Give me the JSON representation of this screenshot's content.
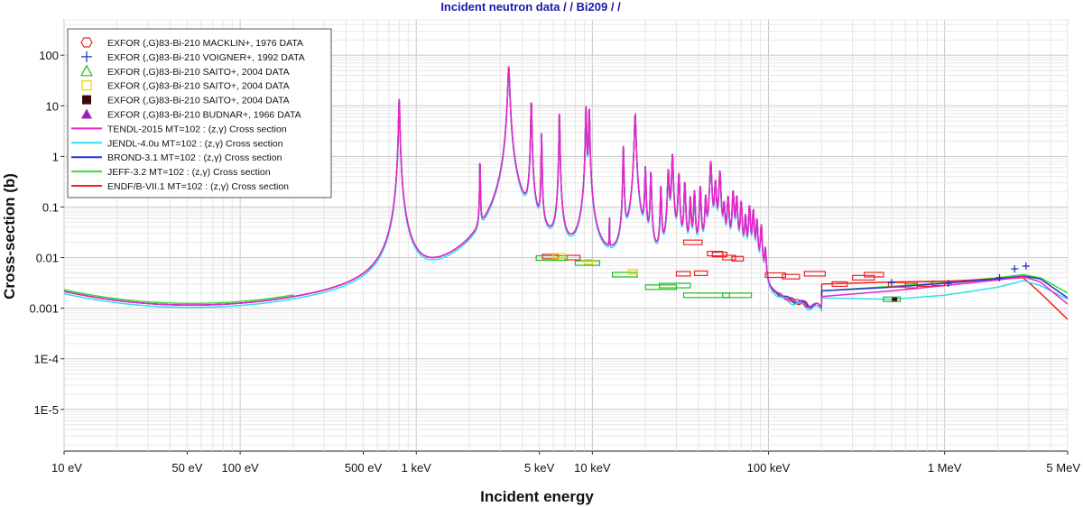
{
  "chart_data": {
    "type": "line",
    "title": "Incident neutron data / / Bi209 / /",
    "xlabel": "Incident energy",
    "ylabel": "Cross-section (b)",
    "x_scale": "log",
    "y_scale": "log",
    "xlim": [
      10,
      5000000
    ],
    "ylim": [
      1.5e-06,
      500
    ],
    "grid": true,
    "legend_position": "top-left",
    "x_ticks": [
      {
        "value": 10,
        "label": "10 eV"
      },
      {
        "value": 50,
        "label": "50 eV"
      },
      {
        "value": 100,
        "label": "100 eV"
      },
      {
        "value": 500,
        "label": "500 eV"
      },
      {
        "value": 1000,
        "label": "1 keV"
      },
      {
        "value": 5000,
        "label": "5 keV"
      },
      {
        "value": 10000,
        "label": "10 keV"
      },
      {
        "value": 100000,
        "label": "100 keV"
      },
      {
        "value": 1000000,
        "label": "1 MeV"
      },
      {
        "value": 5000000,
        "label": "5 MeV"
      }
    ],
    "y_ticks": [
      {
        "value": 1e-05,
        "label": "1E-5"
      },
      {
        "value": 0.0001,
        "label": "1E-4"
      },
      {
        "value": 0.001,
        "label": "0.001"
      },
      {
        "value": 0.01,
        "label": "0.01"
      },
      {
        "value": 0.1,
        "label": "0.1"
      },
      {
        "value": 1,
        "label": "1"
      },
      {
        "value": 10,
        "label": "10"
      },
      {
        "value": 100,
        "label": "100"
      }
    ],
    "legend": [
      {
        "label": "EXFOR (,G)83-Bi-210 MACKLIN+, 1976 DATA",
        "marker": "hexagon",
        "color": "#ee2222"
      },
      {
        "label": "EXFOR (,G)83-Bi-210 VOIGNER+, 1992 DATA",
        "marker": "plus",
        "color": "#2233cc"
      },
      {
        "label": "EXFOR (,G)83-Bi-210 SAITO+, 2004 DATA",
        "marker": "triangle-open",
        "color": "#22bb22"
      },
      {
        "label": "EXFOR (,G)83-Bi-210 SAITO+, 2004 DATA",
        "marker": "square-open",
        "color": "#e8d000"
      },
      {
        "label": "EXFOR (,G)83-Bi-210 SAITO+, 2004 DATA",
        "marker": "square-filled",
        "color": "#3a0a0a"
      },
      {
        "label": "EXFOR (,G)83-Bi-210 BUDNAR+, 1966 DATA",
        "marker": "triangle-filled",
        "color": "#9922bb"
      },
      {
        "label": "TENDL-2015  MT=102 : (z,γ) Cross section",
        "marker": "line",
        "color": "#ee22cc"
      },
      {
        "label": "JENDL-4.0u  MT=102 : (z,γ) Cross section",
        "marker": "line",
        "color": "#33ddee"
      },
      {
        "label": "BROND-3.1  MT=102 : (z,γ) Cross section",
        "marker": "line",
        "color": "#2233dd"
      },
      {
        "label": "JEFF-3.2  MT=102 : (z,γ) Cross section",
        "marker": "line",
        "color": "#33dd33"
      },
      {
        "label": "ENDF/B-VII.1  MT=102 : (z,γ) Cross section",
        "marker": "line",
        "color": "#ee2222"
      }
    ],
    "background": {
      "start": [
        10,
        0.0019
      ],
      "end": [
        200000,
        0.0016
      ],
      "min": [
        180,
        0.00052
      ],
      "threshold_ev": 20000
    },
    "resonances": [
      {
        "e": 800,
        "peak": 14,
        "width": 8
      },
      {
        "e": 2300,
        "peak": 1.2,
        "width": 18
      },
      {
        "e": 3350,
        "peak": 60,
        "width": 5
      },
      {
        "e": 4500,
        "peak": 14,
        "width": 10
      },
      {
        "e": 5150,
        "peak": 3,
        "width": 14
      },
      {
        "e": 6500,
        "peak": 8,
        "width": 12
      },
      {
        "e": 9200,
        "peak": 10,
        "width": 10
      },
      {
        "e": 9600,
        "peak": 10,
        "width": 10
      },
      {
        "e": 12500,
        "peak": 0.05,
        "width": 28
      },
      {
        "e": 15000,
        "peak": 1.6,
        "width": 10
      },
      {
        "e": 17500,
        "peak": 7,
        "width": 6
      },
      {
        "e": 20000,
        "peak": 0.6,
        "width": 8
      },
      {
        "e": 21500,
        "peak": 0.5,
        "width": 8
      },
      {
        "e": 24500,
        "peak": 0.25,
        "width": 8
      },
      {
        "e": 27000,
        "peak": 0.55,
        "width": 6
      },
      {
        "e": 28500,
        "peak": 1.1,
        "width": 6
      },
      {
        "e": 31000,
        "peak": 0.45,
        "width": 6
      },
      {
        "e": 33500,
        "peak": 0.3,
        "width": 6
      },
      {
        "e": 36000,
        "peak": 0.15,
        "width": 6
      },
      {
        "e": 38000,
        "peak": 0.2,
        "width": 6
      },
      {
        "e": 41000,
        "peak": 0.25,
        "width": 6
      },
      {
        "e": 44000,
        "peak": 0.15,
        "width": 6
      },
      {
        "e": 47000,
        "peak": 0.8,
        "width": 5
      },
      {
        "e": 50000,
        "peak": 0.3,
        "width": 5
      },
      {
        "e": 53000,
        "peak": 0.5,
        "width": 5
      },
      {
        "e": 56000,
        "peak": 0.1,
        "width": 5
      },
      {
        "e": 59000,
        "peak": 0.15,
        "width": 5
      },
      {
        "e": 63000,
        "peak": 0.2,
        "width": 5
      },
      {
        "e": 66000,
        "peak": 0.15,
        "width": 5
      },
      {
        "e": 70000,
        "peak": 0.12,
        "width": 5
      },
      {
        "e": 74000,
        "peak": 0.06,
        "width": 5
      },
      {
        "e": 78000,
        "peak": 0.1,
        "width": 5
      },
      {
        "e": 82000,
        "peak": 0.08,
        "width": 5
      },
      {
        "e": 86000,
        "peak": 0.05,
        "width": 5
      },
      {
        "e": 91000,
        "peak": 0.04,
        "width": 5
      },
      {
        "e": 96000,
        "peak": 0.012,
        "width": 5
      }
    ],
    "series": [
      {
        "name": "TENDL-2015",
        "color": "#ee22cc",
        "tail": [
          [
            200000,
            0.0017
          ],
          [
            500000,
            0.0022
          ],
          [
            1000000,
            0.0028
          ],
          [
            2000000,
            0.0036
          ],
          [
            2800000,
            0.0042
          ],
          [
            3500000,
            0.0033
          ],
          [
            5000000,
            0.0012
          ]
        ]
      },
      {
        "name": "JENDL-4.0u",
        "color": "#33ddee",
        "tail": [
          [
            200000,
            0.0016
          ],
          [
            500000,
            0.0015
          ],
          [
            1000000,
            0.0018
          ],
          [
            2000000,
            0.0026
          ],
          [
            2800000,
            0.0035
          ],
          [
            3500000,
            0.0028
          ],
          [
            5000000,
            0.0015
          ]
        ]
      },
      {
        "name": "BROND-3.1",
        "color": "#2233dd",
        "tail": [
          [
            200000,
            0.0022
          ],
          [
            500000,
            0.0026
          ],
          [
            1000000,
            0.0031
          ],
          [
            2000000,
            0.0038
          ],
          [
            2800000,
            0.0043
          ],
          [
            3500000,
            0.0038
          ],
          [
            5000000,
            0.0016
          ]
        ]
      },
      {
        "name": "JEFF-3.2",
        "color": "#33dd33",
        "tail": [
          [
            200000,
            0.0022
          ],
          [
            500000,
            0.0027
          ],
          [
            1000000,
            0.0032
          ],
          [
            2000000,
            0.004
          ],
          [
            2800000,
            0.0046
          ],
          [
            3500000,
            0.004
          ],
          [
            5000000,
            0.002
          ]
        ]
      },
      {
        "name": "ENDF/B-VII.1",
        "color": "#ee2222",
        "tail": [
          [
            200000,
            0.003
          ],
          [
            500000,
            0.0033
          ],
          [
            1000000,
            0.0034
          ],
          [
            2000000,
            0.0038
          ],
          [
            2800000,
            0.004
          ],
          [
            3500000,
            0.002
          ],
          [
            5000000,
            0.0006
          ]
        ]
      }
    ],
    "exfor_points": [
      {
        "dataset": "MACKLIN+, 1976",
        "color": "#ee2222",
        "marker": "bar",
        "points": [
          [
            5200,
            6400,
            0.0105
          ],
          [
            7000,
            8500,
            0.01
          ],
          [
            33000,
            42000,
            0.02
          ],
          [
            45000,
            55000,
            0.012
          ],
          [
            48000,
            58000,
            0.0115
          ],
          [
            55000,
            65000,
            0.01
          ],
          [
            62000,
            72000,
            0.0095
          ],
          [
            96000,
            125000,
            0.0045
          ],
          [
            120000,
            150000,
            0.0042
          ],
          [
            160000,
            210000,
            0.0048
          ],
          [
            230000,
            280000,
            0.003
          ],
          [
            300000,
            400000,
            0.004
          ],
          [
            350000,
            450000,
            0.0046
          ],
          [
            480000,
            600000,
            0.0029
          ],
          [
            600000,
            700000,
            0.0028
          ],
          [
            700000,
            850000,
            0.003
          ],
          [
            850000,
            1000000,
            0.0031
          ],
          [
            38000,
            45000,
            0.0049
          ],
          [
            30000,
            36000,
            0.0048
          ]
        ]
      },
      {
        "dataset": "VOIGNER+, 1992",
        "color": "#2233cc",
        "marker": "plus",
        "points": [
          [
            500000,
            0.0032
          ],
          [
            1050000,
            0.0031
          ],
          [
            2050000,
            0.004
          ],
          [
            2500000,
            0.006
          ],
          [
            2900000,
            0.0068
          ]
        ]
      },
      {
        "dataset": "SAITO+, 2004 (1)",
        "color": "#22bb22",
        "marker": "bar",
        "points": [
          [
            4800,
            7200,
            0.0098
          ],
          [
            8000,
            11000,
            0.0078
          ],
          [
            13000,
            18000,
            0.0046
          ],
          [
            20000,
            30000,
            0.0026
          ],
          [
            24000,
            36000,
            0.0028
          ],
          [
            33000,
            60000,
            0.0018
          ],
          [
            55000,
            80000,
            0.0018
          ],
          [
            450000,
            560000,
            0.0015
          ]
        ]
      },
      {
        "dataset": "SAITO+, 2004 (2)",
        "color": "#e8d000",
        "marker": "bar",
        "points": [
          [
            6000,
            7000,
            0.0108
          ],
          [
            9000,
            10000,
            0.0082
          ],
          [
            16000,
            18000,
            0.0052
          ]
        ]
      },
      {
        "dataset": "SAITO+, 2004 (3)",
        "color": "#3a0a0a",
        "marker": "square",
        "points": [
          [
            520000,
            0.0015
          ]
        ]
      }
    ]
  }
}
